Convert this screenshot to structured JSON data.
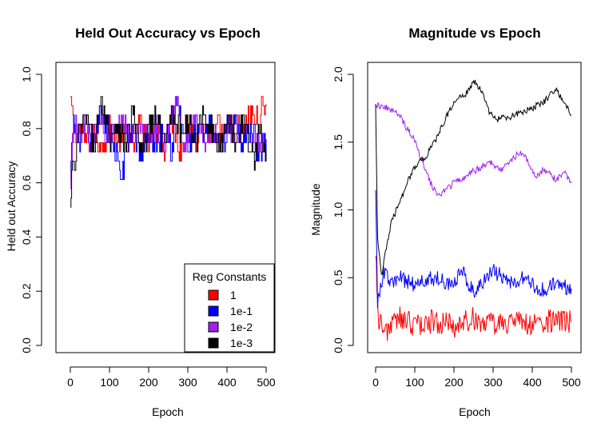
{
  "chart_data": [
    {
      "type": "line",
      "title": "Held Out Accuracy vs Epoch",
      "xlabel": "Epoch",
      "ylabel": "Held out Accuracy",
      "xlim": [
        0,
        500
      ],
      "ylim": [
        0.0,
        1.0
      ],
      "xticks": [
        "0",
        "100",
        "200",
        "300",
        "400",
        "500"
      ],
      "yticks": [
        "0.0",
        "0.2",
        "0.4",
        "0.6",
        "0.8",
        "1.0"
      ],
      "legend": {
        "title": "Reg Constants",
        "position": "bottom-right",
        "entries": [
          "1",
          "1e-1",
          "1e-2",
          "1e-3"
        ]
      },
      "series": [
        {
          "label": "1",
          "color": "#ff0000",
          "points": [
            [
              0,
              0.9
            ],
            [
              5,
              0.85
            ],
            [
              10,
              0.78
            ],
            [
              20,
              0.8
            ],
            [
              40,
              0.75
            ],
            [
              60,
              0.79
            ],
            [
              80,
              0.73
            ],
            [
              100,
              0.8
            ],
            [
              120,
              0.76
            ],
            [
              140,
              0.79
            ],
            [
              160,
              0.75
            ],
            [
              180,
              0.82
            ],
            [
              200,
              0.77
            ],
            [
              220,
              0.8
            ],
            [
              240,
              0.74
            ],
            [
              260,
              0.83
            ],
            [
              280,
              0.72
            ],
            [
              300,
              0.8
            ],
            [
              320,
              0.77
            ],
            [
              340,
              0.82
            ],
            [
              360,
              0.75
            ],
            [
              380,
              0.8
            ],
            [
              400,
              0.78
            ],
            [
              420,
              0.82
            ],
            [
              440,
              0.79
            ],
            [
              460,
              0.85
            ],
            [
              480,
              0.82
            ],
            [
              490,
              0.88
            ],
            [
              500,
              0.89
            ]
          ]
        },
        {
          "label": "1e-1",
          "color": "#0000ff",
          "points": [
            [
              0,
              0.6
            ],
            [
              5,
              0.78
            ],
            [
              10,
              0.82
            ],
            [
              20,
              0.76
            ],
            [
              40,
              0.8
            ],
            [
              60,
              0.75
            ],
            [
              80,
              0.85
            ],
            [
              100,
              0.78
            ],
            [
              120,
              0.7
            ],
            [
              130,
              0.6
            ],
            [
              140,
              0.72
            ],
            [
              160,
              0.8
            ],
            [
              180,
              0.7
            ],
            [
              200,
              0.78
            ],
            [
              220,
              0.74
            ],
            [
              240,
              0.82
            ],
            [
              260,
              0.72
            ],
            [
              270,
              0.9
            ],
            [
              280,
              0.85
            ],
            [
              300,
              0.72
            ],
            [
              320,
              0.8
            ],
            [
              340,
              0.76
            ],
            [
              360,
              0.82
            ],
            [
              380,
              0.73
            ],
            [
              400,
              0.79
            ],
            [
              420,
              0.85
            ],
            [
              440,
              0.75
            ],
            [
              460,
              0.8
            ],
            [
              480,
              0.72
            ],
            [
              500,
              0.76
            ]
          ]
        },
        {
          "label": "1e-2",
          "color": "#a020f0",
          "points": [
            [
              0,
              0.57
            ],
            [
              5,
              0.75
            ],
            [
              10,
              0.82
            ],
            [
              20,
              0.78
            ],
            [
              40,
              0.8
            ],
            [
              60,
              0.77
            ],
            [
              80,
              0.82
            ],
            [
              100,
              0.76
            ],
            [
              120,
              0.79
            ],
            [
              140,
              0.82
            ],
            [
              160,
              0.77
            ],
            [
              180,
              0.81
            ],
            [
              200,
              0.76
            ],
            [
              220,
              0.8
            ],
            [
              240,
              0.74
            ],
            [
              260,
              0.85
            ],
            [
              270,
              0.93
            ],
            [
              280,
              0.82
            ],
            [
              290,
              0.68
            ],
            [
              300,
              0.78
            ],
            [
              320,
              0.82
            ],
            [
              340,
              0.76
            ],
            [
              360,
              0.8
            ],
            [
              380,
              0.74
            ],
            [
              400,
              0.82
            ],
            [
              420,
              0.78
            ],
            [
              440,
              0.8
            ],
            [
              460,
              0.77
            ],
            [
              480,
              0.74
            ],
            [
              500,
              0.75
            ]
          ]
        },
        {
          "label": "1e-3",
          "color": "#000000",
          "points": [
            [
              0,
              0.48
            ],
            [
              5,
              0.68
            ],
            [
              10,
              0.63
            ],
            [
              20,
              0.78
            ],
            [
              40,
              0.85
            ],
            [
              60,
              0.73
            ],
            [
              80,
              0.9
            ],
            [
              100,
              0.77
            ],
            [
              120,
              0.82
            ],
            [
              140,
              0.74
            ],
            [
              160,
              0.86
            ],
            [
              180,
              0.7
            ],
            [
              200,
              0.8
            ],
            [
              220,
              0.85
            ],
            [
              240,
              0.73
            ],
            [
              260,
              0.88
            ],
            [
              280,
              0.78
            ],
            [
              300,
              0.82
            ],
            [
              320,
              0.75
            ],
            [
              340,
              0.87
            ],
            [
              360,
              0.8
            ],
            [
              380,
              0.72
            ],
            [
              400,
              0.84
            ],
            [
              420,
              0.78
            ],
            [
              440,
              0.82
            ],
            [
              460,
              0.75
            ],
            [
              470,
              0.67
            ],
            [
              480,
              0.78
            ],
            [
              500,
              0.72
            ]
          ]
        }
      ]
    },
    {
      "type": "line",
      "title": "Magnitude vs Epoch",
      "xlabel": "Epoch",
      "ylabel": "Magnitude",
      "xlim": [
        0,
        500
      ],
      "ylim": [
        0.0,
        2.0
      ],
      "xticks": [
        "0",
        "100",
        "200",
        "300",
        "400",
        "500"
      ],
      "yticks": [
        "0.0",
        "0.5",
        "1.0",
        "1.5",
        "2.0"
      ],
      "series": [
        {
          "label": "1",
          "color": "#ff0000",
          "points": [
            [
              0,
              0.75
            ],
            [
              5,
              0.3
            ],
            [
              10,
              0.15
            ],
            [
              30,
              0.12
            ],
            [
              60,
              0.2
            ],
            [
              100,
              0.15
            ],
            [
              150,
              0.18
            ],
            [
              200,
              0.14
            ],
            [
              250,
              0.2
            ],
            [
              300,
              0.15
            ],
            [
              350,
              0.18
            ],
            [
              400,
              0.15
            ],
            [
              450,
              0.18
            ],
            [
              500,
              0.17
            ]
          ]
        },
        {
          "label": "1e-1",
          "color": "#0000ff",
          "points": [
            [
              0,
              1.2
            ],
            [
              5,
              0.3
            ],
            [
              20,
              0.55
            ],
            [
              40,
              0.45
            ],
            [
              60,
              0.5
            ],
            [
              100,
              0.45
            ],
            [
              150,
              0.5
            ],
            [
              200,
              0.45
            ],
            [
              220,
              0.55
            ],
            [
              250,
              0.4
            ],
            [
              300,
              0.55
            ],
            [
              350,
              0.45
            ],
            [
              380,
              0.5
            ],
            [
              420,
              0.4
            ],
            [
              460,
              0.45
            ],
            [
              500,
              0.42
            ]
          ]
        },
        {
          "label": "1e-2",
          "color": "#a020f0",
          "points": [
            [
              0,
              1.78
            ],
            [
              30,
              1.75
            ],
            [
              60,
              1.7
            ],
            [
              80,
              1.6
            ],
            [
              100,
              1.52
            ],
            [
              120,
              1.35
            ],
            [
              140,
              1.2
            ],
            [
              160,
              1.1
            ],
            [
              180,
              1.15
            ],
            [
              200,
              1.2
            ],
            [
              230,
              1.25
            ],
            [
              260,
              1.3
            ],
            [
              290,
              1.35
            ],
            [
              320,
              1.3
            ],
            [
              350,
              1.38
            ],
            [
              370,
              1.43
            ],
            [
              390,
              1.35
            ],
            [
              410,
              1.25
            ],
            [
              430,
              1.3
            ],
            [
              460,
              1.22
            ],
            [
              480,
              1.28
            ],
            [
              500,
              1.2
            ]
          ]
        },
        {
          "label": "1e-3",
          "color": "#000000",
          "points": [
            [
              0,
              1.8
            ],
            [
              5,
              0.8
            ],
            [
              15,
              0.5
            ],
            [
              25,
              0.7
            ],
            [
              40,
              0.9
            ],
            [
              60,
              1.05
            ],
            [
              80,
              1.2
            ],
            [
              100,
              1.32
            ],
            [
              130,
              1.4
            ],
            [
              160,
              1.55
            ],
            [
              190,
              1.75
            ],
            [
              210,
              1.82
            ],
            [
              230,
              1.85
            ],
            [
              250,
              1.95
            ],
            [
              270,
              1.88
            ],
            [
              290,
              1.72
            ],
            [
              310,
              1.67
            ],
            [
              340,
              1.68
            ],
            [
              370,
              1.72
            ],
            [
              400,
              1.75
            ],
            [
              430,
              1.8
            ],
            [
              460,
              1.9
            ],
            [
              480,
              1.8
            ],
            [
              500,
              1.7
            ]
          ]
        }
      ]
    }
  ]
}
